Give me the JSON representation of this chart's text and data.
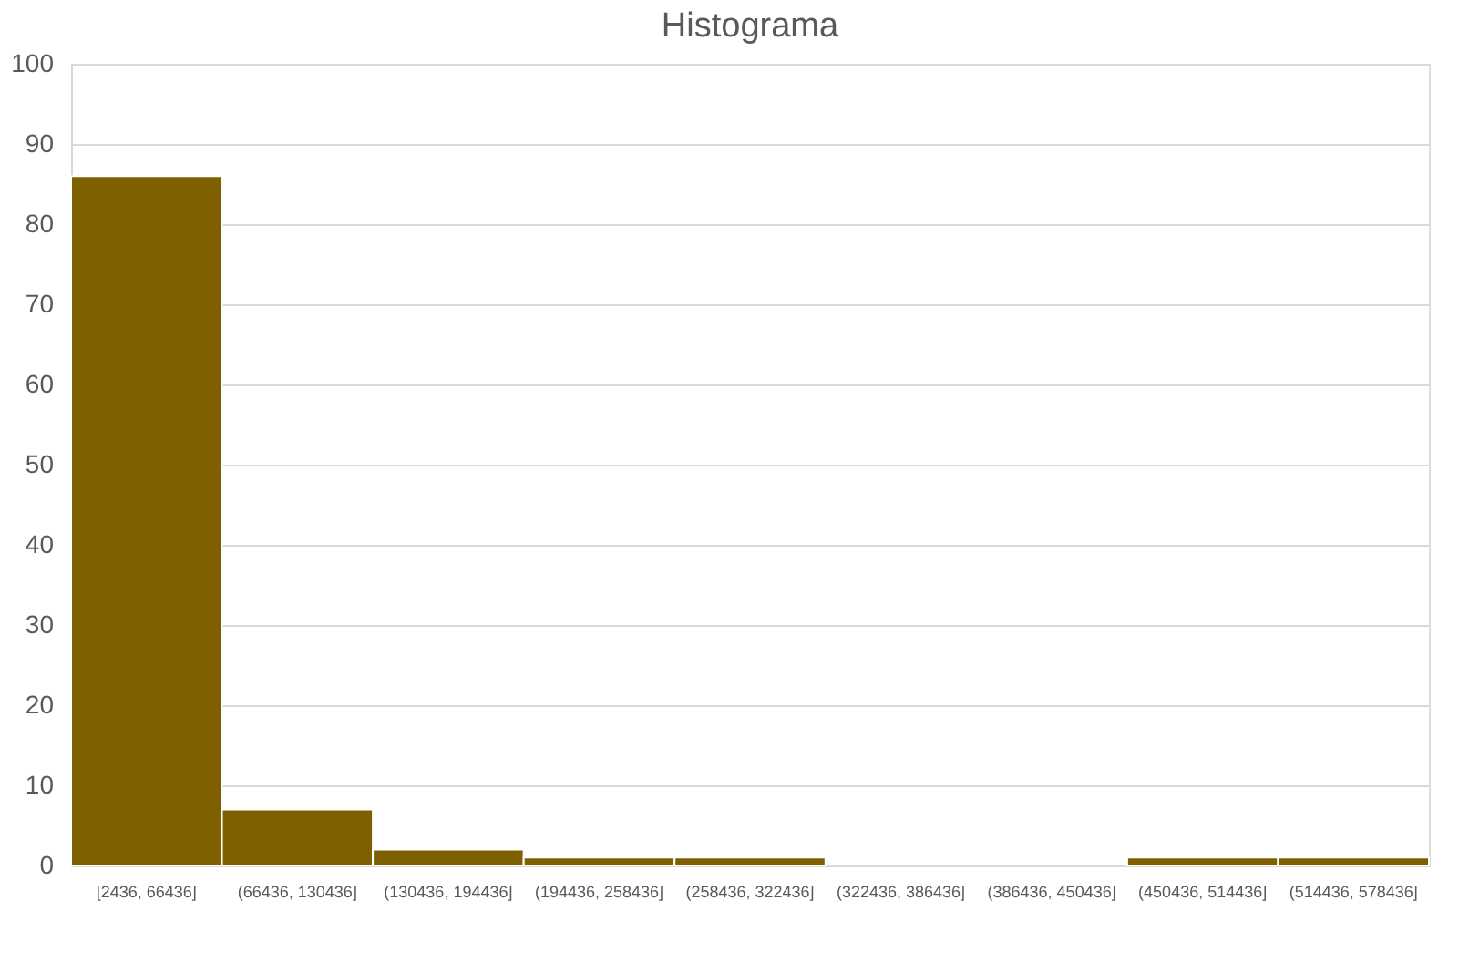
{
  "chart_data": {
    "type": "bar",
    "title": "Histograma",
    "categories": [
      "[2436, 66436]",
      "(66436, 130436]",
      "(130436, 194436]",
      "(194436, 258436]",
      "(258436, 322436]",
      "(322436, 386436]",
      "(386436, 450436]",
      "(450436, 514436]",
      "(514436, 578436]"
    ],
    "values": [
      86,
      7,
      2,
      1,
      1,
      0,
      0,
      1,
      1
    ],
    "color": "#7f6000",
    "ylim": [
      0,
      100
    ],
    "yticks": [
      0,
      10,
      20,
      30,
      40,
      50,
      60,
      70,
      80,
      90,
      100
    ],
    "grid": "y"
  }
}
